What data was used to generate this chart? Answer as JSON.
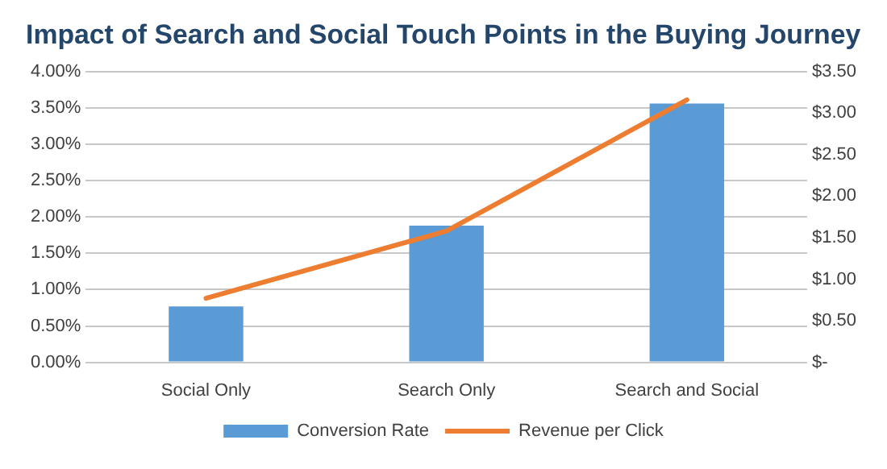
{
  "chart_data": {
    "type": "bar",
    "title": "Impact of Search and Social Touch Points in the Buying Journey",
    "categories": [
      "Social Only",
      "Search Only",
      "Search and Social"
    ],
    "series": [
      {
        "name": "Conversion Rate",
        "color": "#5b9bd5",
        "values": [
          0.77,
          1.88,
          3.56
        ]
      },
      {
        "name": "Revenue per Click",
        "type": "line",
        "axis": "y2",
        "color": "#ed7d31",
        "values": [
          0.77,
          1.58,
          3.16
        ]
      }
    ],
    "ylim": [
      0,
      4
    ],
    "yticks": [
      {
        "value": 0,
        "label": "0.00%"
      },
      {
        "value": 0.5,
        "label": "0.50%"
      },
      {
        "value": 1,
        "label": "1.00%"
      },
      {
        "value": 1.5,
        "label": "1.50%"
      },
      {
        "value": 2,
        "label": "2.00%"
      },
      {
        "value": 2.5,
        "label": "2.50%"
      },
      {
        "value": 3,
        "label": "3.00%"
      },
      {
        "value": 3.5,
        "label": "3.50%"
      },
      {
        "value": 4,
        "label": "4.00%"
      }
    ],
    "y2lim": [
      0,
      3.5
    ],
    "y2ticks": [
      {
        "value": 0,
        "label": "$-"
      },
      {
        "value": 0.5,
        "label": "$0.50"
      },
      {
        "value": 1,
        "label": "$1.00"
      },
      {
        "value": 1.5,
        "label": "$1.50"
      },
      {
        "value": 2,
        "label": "$2.00"
      },
      {
        "value": 2.5,
        "label": "$2.50"
      },
      {
        "value": 3,
        "label": "$3.00"
      },
      {
        "value": 3.5,
        "label": "$3.50"
      }
    ],
    "grid": "y",
    "legend": "bottom",
    "marker": "none",
    "line_style": "solid"
  }
}
